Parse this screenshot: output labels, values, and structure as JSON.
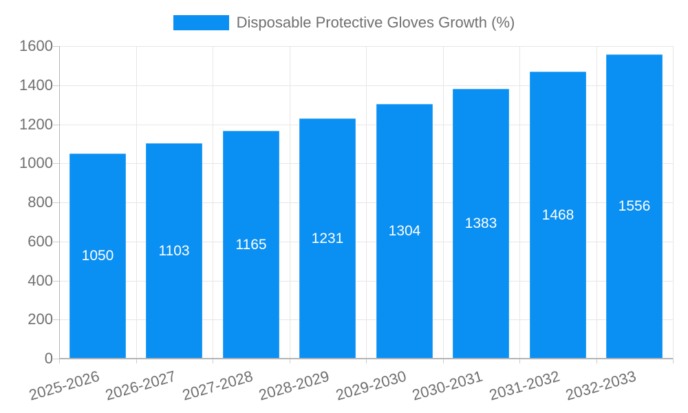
{
  "chart_data": {
    "type": "bar",
    "title": "",
    "legend_label": "Disposable Protective Gloves Growth (%)",
    "legend_position": "top",
    "categories": [
      "2025-2026",
      "2026-2027",
      "2027-2028",
      "2028-2029",
      "2029-2030",
      "2030-2031",
      "2031-2032",
      "2032-2033"
    ],
    "values": [
      1050,
      1103,
      1165,
      1231,
      1304,
      1383,
      1468,
      1556
    ],
    "xlabel": "",
    "ylabel": "",
    "ylim": [
      0,
      1600
    ],
    "yticks": [
      0,
      200,
      400,
      600,
      800,
      1000,
      1200,
      1400,
      1600
    ],
    "grid": true,
    "value_labels": "inside-center"
  },
  "colors": {
    "bar": "#0a8ff2",
    "grid": "#e6e6e6",
    "axis": "#b3b3b3",
    "tick": "#cccccc",
    "text": "#6f6f6f",
    "value_text": "#ffffff",
    "background": "#ffffff"
  }
}
